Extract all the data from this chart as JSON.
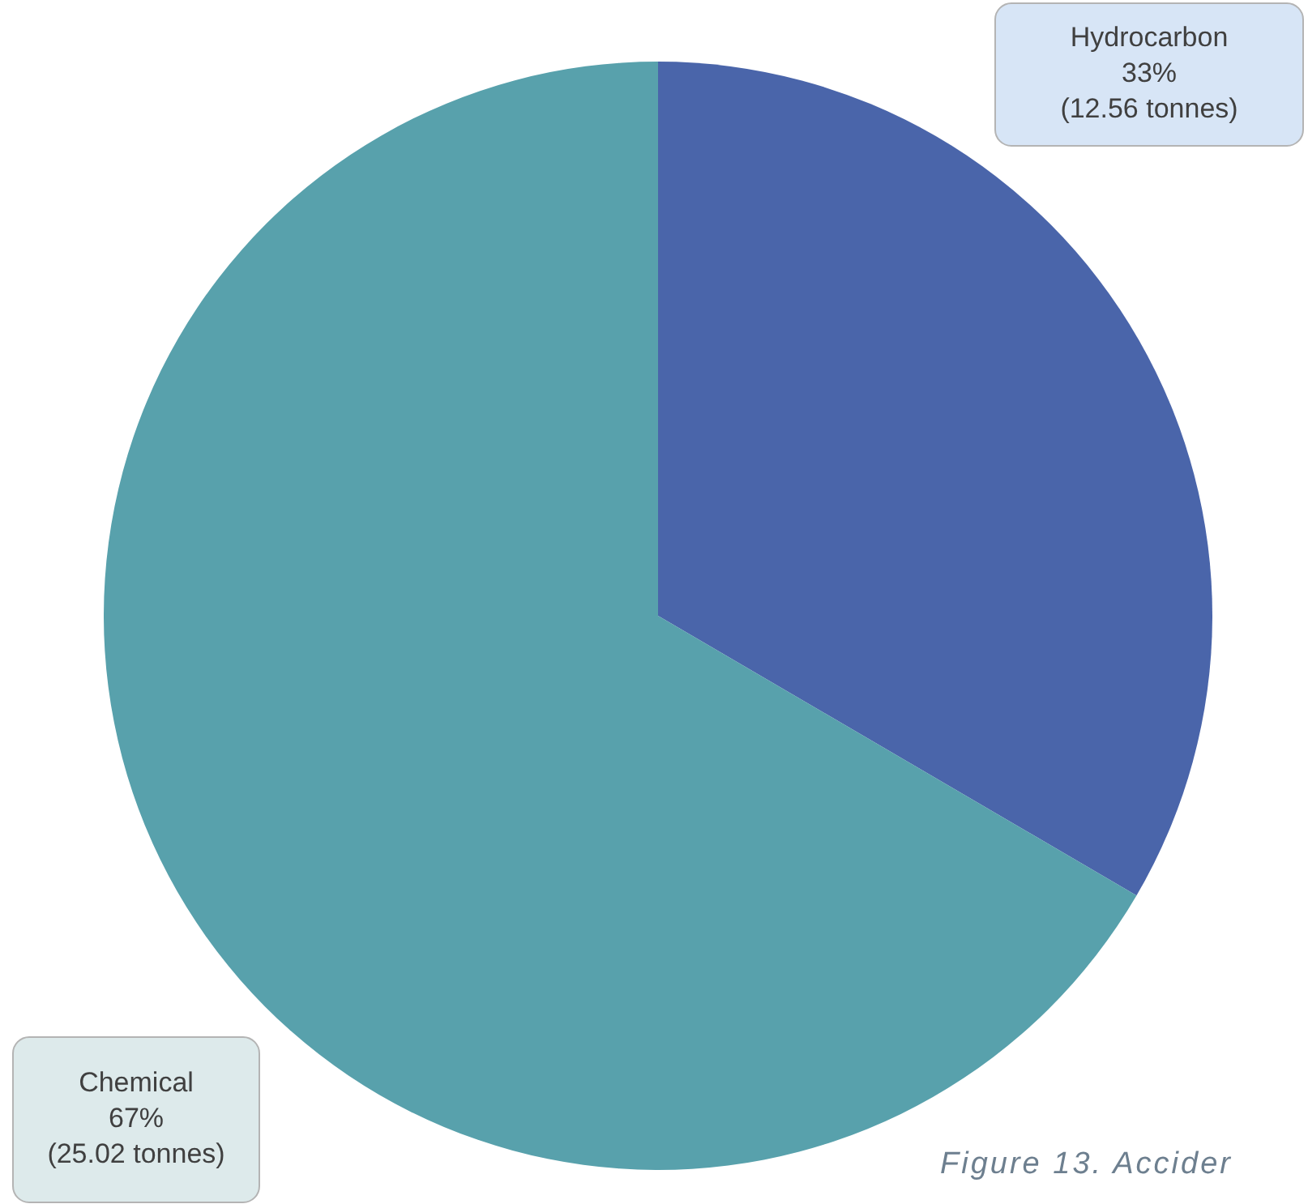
{
  "chart_data": {
    "type": "pie",
    "categories": [
      "Hydrocarbon",
      "Chemical"
    ],
    "values": [
      12.56,
      25.02
    ],
    "colors": [
      "#4a65aa",
      "#58a1ac"
    ],
    "value_labels": [
      "33%\n(12.56 tonnes)",
      "67%\n(25.02 tonnes)"
    ],
    "annotations": [
      "Figure 13. Accider"
    ]
  }
}
